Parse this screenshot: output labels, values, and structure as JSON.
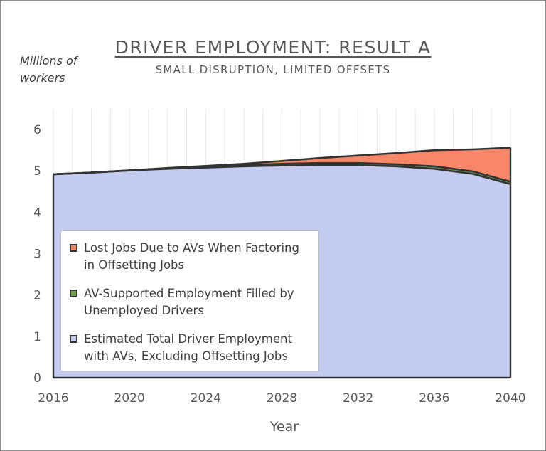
{
  "chart_data": {
    "type": "area",
    "title": "DRIVER EMPLOYMENT: RESULT A",
    "subtitle": "SMALL DISRUPTION, LIMITED OFFSETS",
    "ylabel": "Millions of workers",
    "xlabel": "Year",
    "x": [
      2016,
      2018,
      2020,
      2022,
      2024,
      2026,
      2028,
      2030,
      2032,
      2034,
      2036,
      2038,
      2040
    ],
    "xticks": [
      2016,
      2020,
      2024,
      2028,
      2032,
      2036,
      2040
    ],
    "yticks": [
      0,
      1,
      2,
      3,
      4,
      5,
      6
    ],
    "xlim": [
      2016,
      2040
    ],
    "ylim": [
      0,
      6.5
    ],
    "grid": "vertical",
    "legend_position": "bottom-left",
    "series": [
      {
        "name": "Estimated Total Driver Employment with AVs, Excluding Offsetting Jobs",
        "color": "#c3cbf0",
        "values": [
          4.92,
          4.96,
          5.01,
          5.05,
          5.08,
          5.11,
          5.13,
          5.14,
          5.14,
          5.11,
          5.05,
          4.93,
          4.68
        ]
      },
      {
        "name": "AV-Supported Employment Filled by Unemployed Drivers",
        "color": "#70a050",
        "values": [
          0.0,
          0.0,
          0.0,
          0.01,
          0.02,
          0.03,
          0.04,
          0.05,
          0.05,
          0.05,
          0.06,
          0.06,
          0.06
        ]
      },
      {
        "name": "Lost Jobs Due to AVs When Factoring in Offsetting Jobs",
        "color": "#f8876a",
        "values": [
          0.0,
          0.0,
          0.0,
          0.01,
          0.02,
          0.03,
          0.07,
          0.12,
          0.18,
          0.27,
          0.39,
          0.53,
          0.82
        ]
      }
    ]
  },
  "legend": {
    "items": [
      {
        "line1": "Lost Jobs Due to AVs When Factoring",
        "line2": "in Offsetting Jobs",
        "color": "#f8876a"
      },
      {
        "line1": "AV-Supported Employment Filled by",
        "line2": "Unemployed Drivers",
        "color": "#70a050"
      },
      {
        "line1": "Estimated Total Driver Employment",
        "line2": "with AVs, Excluding Offsetting Jobs",
        "color": "#c3cbf0"
      }
    ]
  }
}
